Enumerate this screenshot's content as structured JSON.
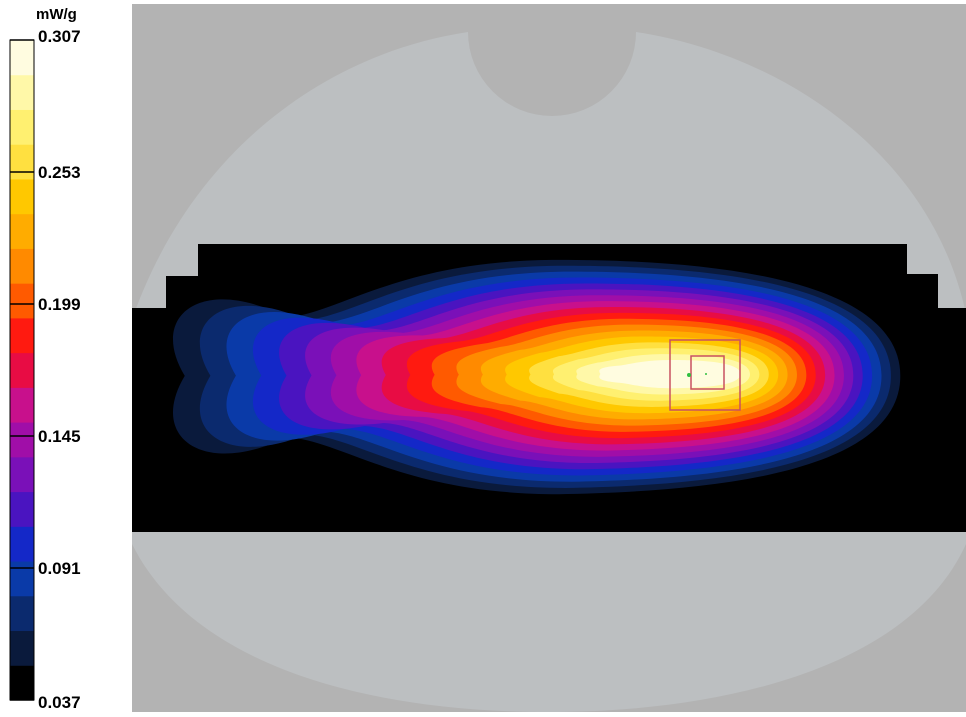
{
  "chart_data": {
    "type": "heatmap",
    "unit": "mW/g",
    "colorbar": {
      "min": 0.037,
      "max": 0.307,
      "ticks": [
        "0.307",
        "0.253",
        "0.199",
        "0.145",
        "0.091",
        "0.037"
      ],
      "levels": [
        "#000000",
        "#0a1a3c",
        "#0b2a6e",
        "#0a3aa8",
        "#1428c8",
        "#4a14c0",
        "#7a10b8",
        "#a00ea8",
        "#c8108c",
        "#e80c44",
        "#ff1a10",
        "#ff5a00",
        "#ff8a00",
        "#ffac00",
        "#ffc800",
        "#ffe040",
        "#fff070",
        "#fff8a8",
        "#fffce0"
      ]
    },
    "colors": {
      "background": "#b3b3b3",
      "phantom": "#bcbfc1",
      "measurement_region": "#000000",
      "zoom_box": "#c85060"
    }
  }
}
